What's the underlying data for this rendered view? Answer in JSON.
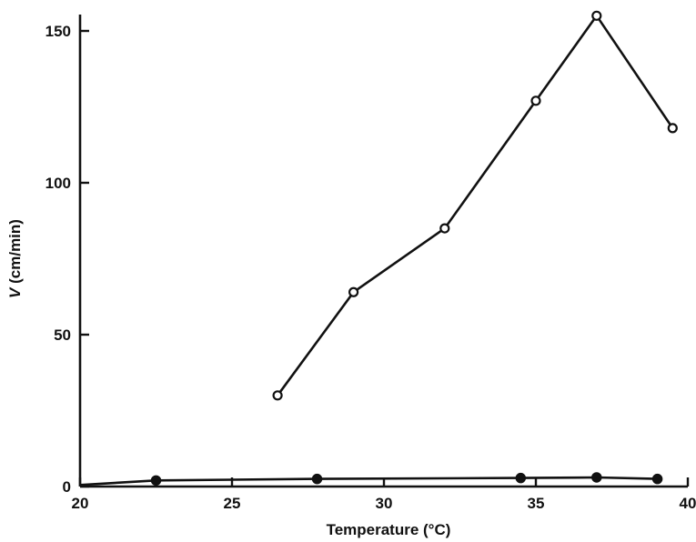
{
  "chart_data": {
    "type": "line",
    "xlabel": "Temperature (°C)",
    "ylabel_prefix": "V",
    "ylabel_suffix": " (cm/min)",
    "xlim": [
      20,
      40
    ],
    "ylim": [
      0,
      150
    ],
    "x_ticks": [
      20,
      25,
      30,
      35,
      40
    ],
    "y_ticks": [
      0,
      50,
      100,
      150
    ],
    "grid": false,
    "series": [
      {
        "marker": "open-circle",
        "x": [
          26.5,
          29,
          32,
          35,
          37,
          39.5
        ],
        "y": [
          30,
          64,
          85,
          127,
          155,
          118
        ]
      },
      {
        "marker": "filled-circle",
        "x": [
          20,
          22.5,
          27.8,
          34.5,
          37,
          39
        ],
        "y": [
          0.5,
          2,
          2.5,
          2.8,
          3,
          2.5
        ]
      }
    ]
  }
}
